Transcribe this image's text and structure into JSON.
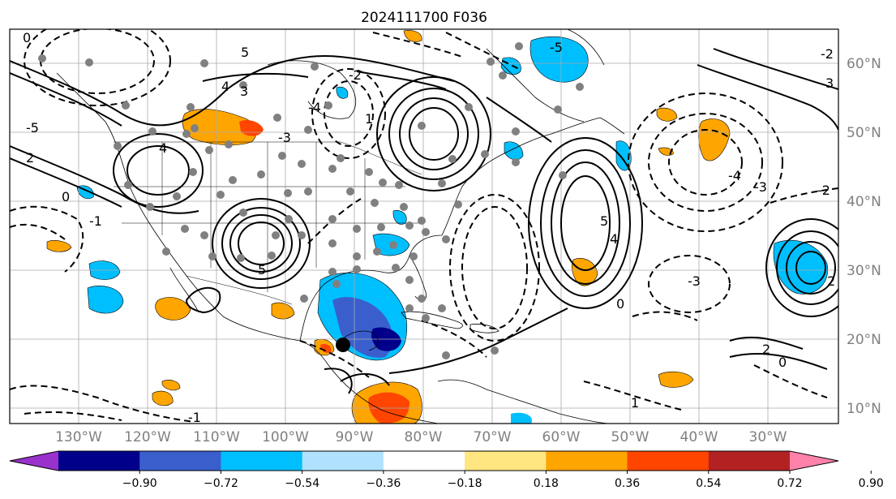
{
  "title": "2024111700 F036",
  "map": {
    "lon_labels": [
      "130°W",
      "120°W",
      "110°W",
      "100°W",
      "90°W",
      "80°W",
      "70°W",
      "60°W",
      "50°W",
      "40°W",
      "30°W"
    ],
    "lat_labels": [
      "60°N",
      "50°N",
      "40°N",
      "30°N",
      "20°N",
      "10°N"
    ],
    "contour_labels": [
      "0",
      "-5",
      "5",
      "-4",
      "4",
      "-3",
      "3",
      "-2",
      "2",
      "-1",
      "1",
      "0",
      "5",
      "-5",
      "4",
      "-4",
      "-3",
      "-2",
      "2",
      "0",
      "-1",
      "1",
      "3",
      "-3",
      "4",
      "5",
      "-2",
      "2",
      "0"
    ]
  },
  "colorbar": {
    "tick_labels": [
      "−0.90",
      "−0.72",
      "−0.54",
      "−0.36",
      "−0.18",
      "0.18",
      "0.36",
      "0.54",
      "0.72",
      "0.90"
    ],
    "colors": [
      "#9932cc",
      "#00008b",
      "#3a5fcd",
      "#00bfff",
      "#b0e2ff",
      "#ffffff",
      "#ffe680",
      "#ffa500",
      "#ff4500",
      "#b22222",
      "#ff82ab"
    ]
  }
}
